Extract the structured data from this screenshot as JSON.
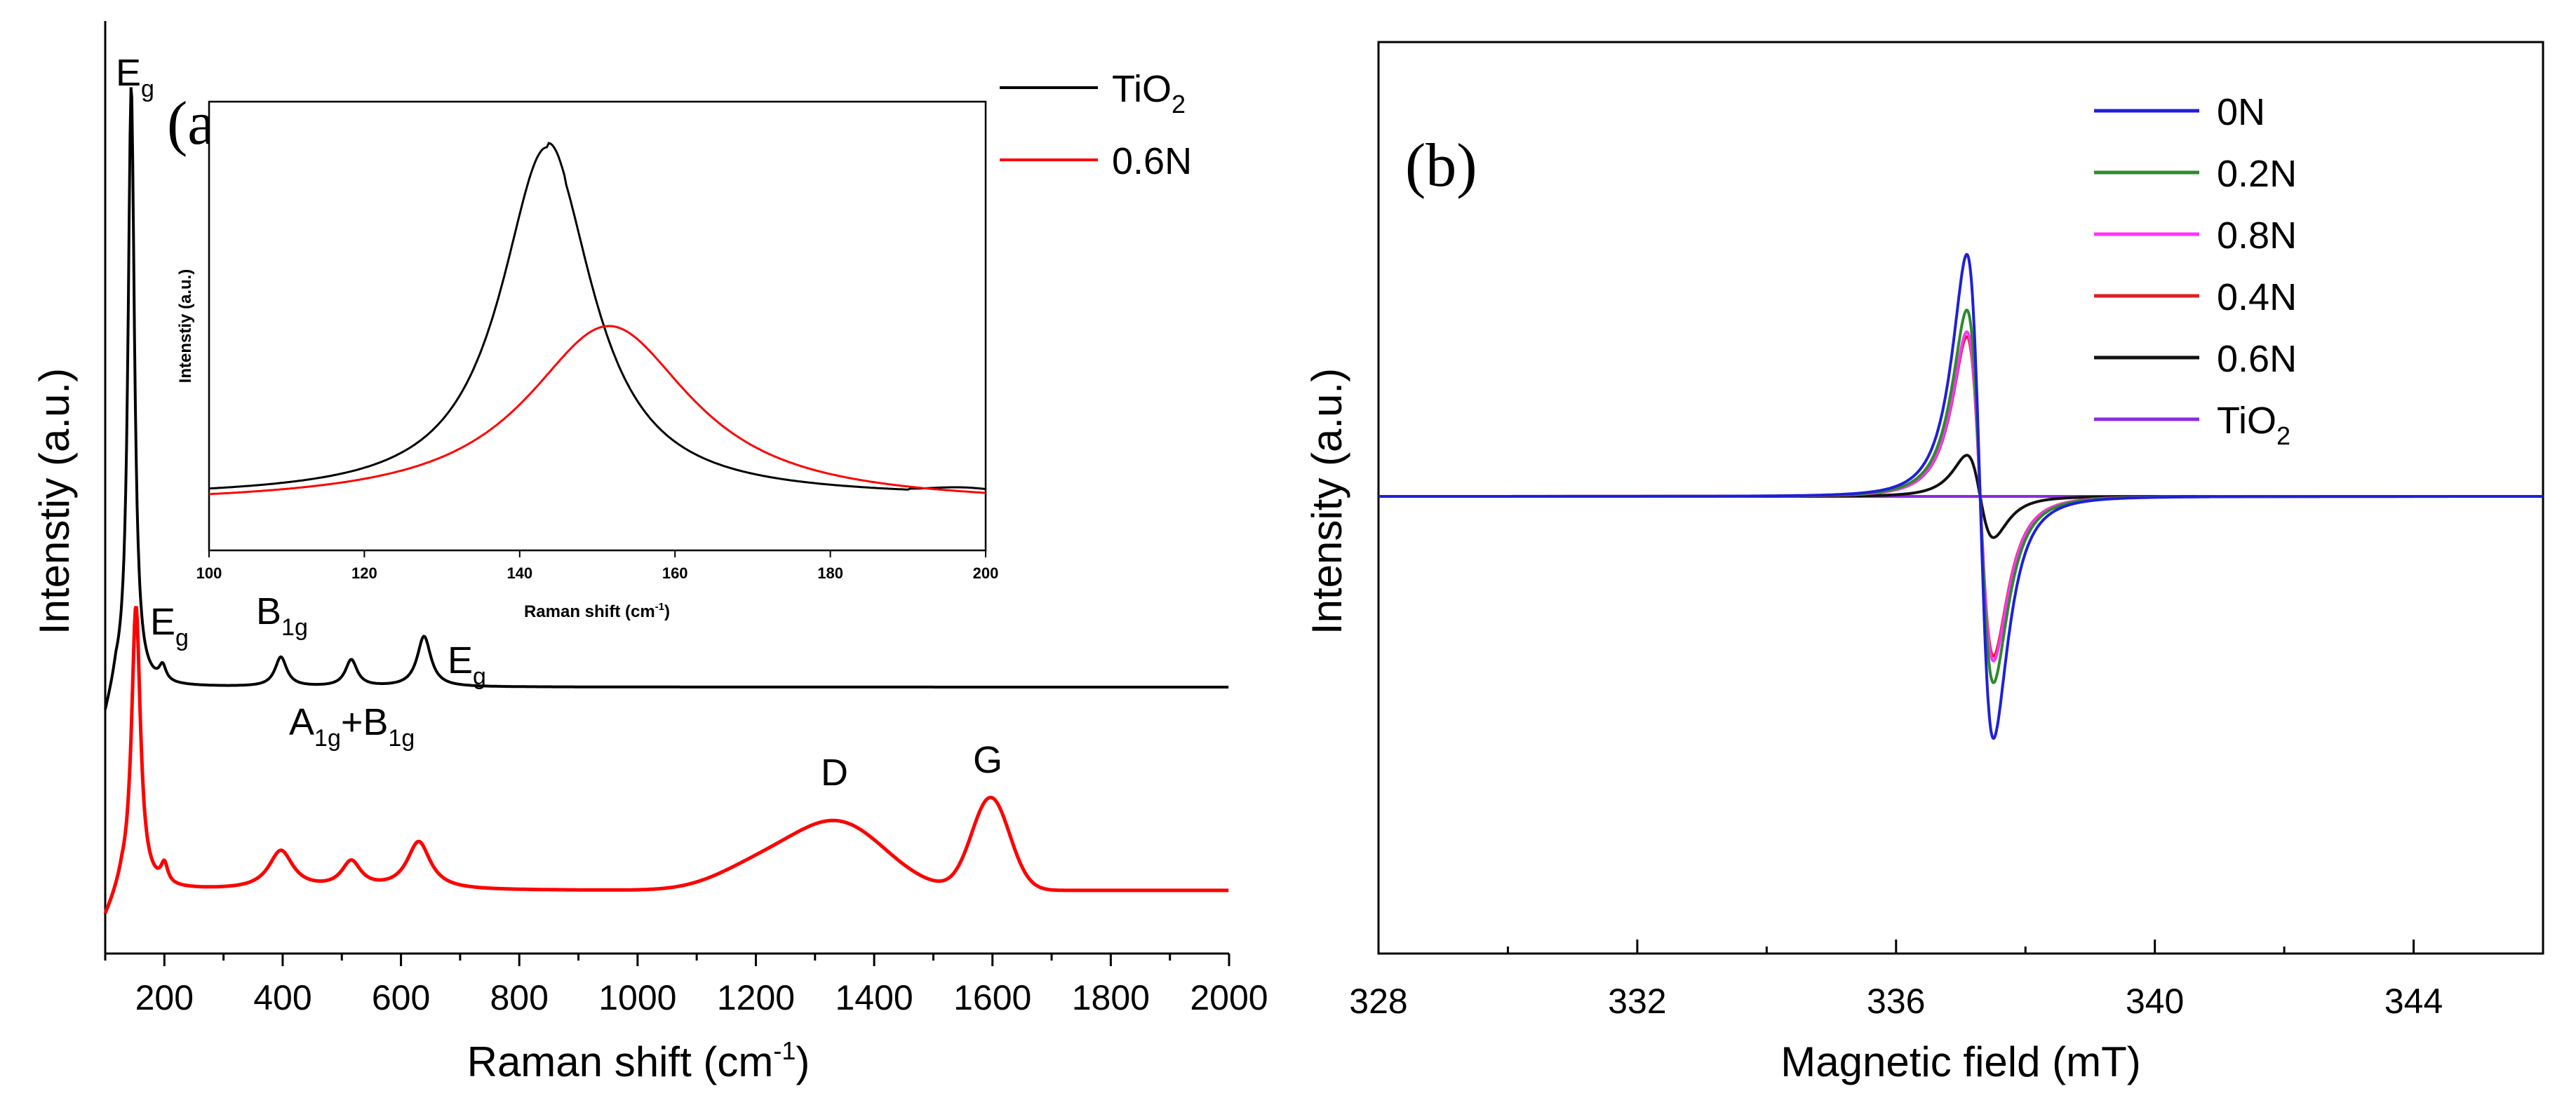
{
  "chart_data": [
    {
      "panel": "(a)",
      "type": "line",
      "xlabel": "Raman shift (cm",
      "xlabel_sup": "-1",
      "xlabel_end": ")",
      "ylabel": "Intenstiy (a.u.)",
      "xlim": [
        100,
        2000
      ],
      "xticks": [
        200,
        400,
        600,
        800,
        1000,
        1200,
        1400,
        1600,
        1800,
        2000
      ],
      "series": [
        {
          "name": "TiO2",
          "label": "TiO",
          "label_sub": "2",
          "color": "#000000",
          "peaks_cm": [
            144,
            197,
            397,
            516,
            639
          ]
        },
        {
          "name": "0.6N",
          "label": "0.6N",
          "color": "#ff0000",
          "peaks_cm": [
            152,
            200,
            397,
            516,
            630,
            1340,
            1595
          ]
        }
      ],
      "peak_labels": [
        {
          "base": "E",
          "sub": "g",
          "x_cm": 145
        },
        {
          "base": "E",
          "sub": "g",
          "x_cm": 200
        },
        {
          "base": "B",
          "sub": "1g",
          "x_cm": 400
        },
        {
          "base": "E",
          "sub": "g",
          "x_cm": 680
        },
        {
          "base": "A",
          "sub": "1g",
          "mid": "+B",
          "sub2": "1g",
          "x_cm": 520
        },
        {
          "base": "D",
          "x_cm": 1340
        },
        {
          "base": "G",
          "x_cm": 1597
        }
      ],
      "inset": {
        "xlabel": "Raman shift (cm",
        "xlabel_sup": "-1",
        "xlabel_end": ")",
        "ylabel": "Intenstiy (a.u.)",
        "xlim": [
          100,
          200
        ],
        "xticks": [
          100,
          120,
          140,
          160,
          180,
          200
        ],
        "series": [
          {
            "name": "TiO2",
            "color": "#000000",
            "peak_cm": 143.5
          },
          {
            "name": "0.6N",
            "color": "#ff0000",
            "peak_cm": 151.5
          }
        ]
      }
    },
    {
      "panel": "(b)",
      "type": "line",
      "xlabel": "Magnetic field (mT)",
      "ylabel": "Intensity (a.u.)",
      "xlim": [
        328,
        346
      ],
      "xticks": [
        328,
        332,
        336,
        340,
        344
      ],
      "center_mT": 337.3,
      "series": [
        {
          "name": "0N",
          "label": "0N",
          "color": "#1f1fd8",
          "amp": 1.0
        },
        {
          "name": "0.2N",
          "label": "0.2N",
          "color": "#2e8b2e",
          "amp": 0.77
        },
        {
          "name": "0.8N",
          "label": "0.8N",
          "color": "#ff33ff",
          "amp": 0.68
        },
        {
          "name": "0.4N",
          "label": "0.4N",
          "color": "#e02020",
          "amp": 0.66
        },
        {
          "name": "0.6N",
          "label": "0.6N",
          "color": "#111111",
          "amp": 0.17
        },
        {
          "name": "TiO2",
          "label": "TiO",
          "label_sub": "2",
          "color": "#8a2be2",
          "amp": 0.0
        }
      ]
    }
  ]
}
